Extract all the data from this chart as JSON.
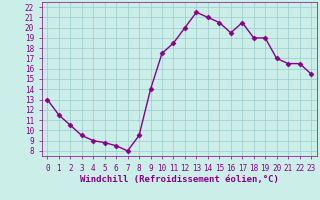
{
  "x": [
    0,
    1,
    2,
    3,
    4,
    5,
    6,
    7,
    8,
    9,
    10,
    11,
    12,
    13,
    14,
    15,
    16,
    17,
    18,
    19,
    20,
    21,
    22,
    23
  ],
  "y": [
    13,
    11.5,
    10.5,
    9.5,
    9.0,
    8.8,
    8.5,
    8.0,
    9.5,
    14.0,
    17.5,
    18.5,
    20.0,
    21.5,
    21.0,
    20.5,
    19.5,
    20.5,
    19.0,
    19.0,
    17.0,
    16.5,
    16.5,
    15.5
  ],
  "line_color": "#880088",
  "marker": "D",
  "marker_size": 2.5,
  "xlabel": "Windchill (Refroidissement éolien,°C)",
  "xlabel_fontsize": 6.5,
  "ylabel_ticks": [
    8,
    9,
    10,
    11,
    12,
    13,
    14,
    15,
    16,
    17,
    18,
    19,
    20,
    21,
    22
  ],
  "xlim": [
    -0.5,
    23.5
  ],
  "ylim": [
    7.5,
    22.5
  ],
  "background_color": "#cceee8",
  "grid_color": "#99cccc",
  "tick_label_fontsize": 5.5,
  "linewidth": 1.0
}
